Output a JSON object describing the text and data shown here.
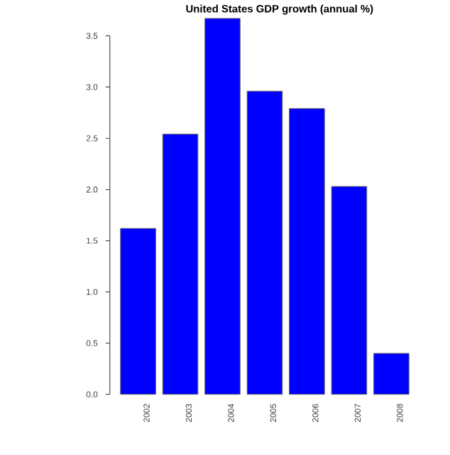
{
  "chart_data": {
    "type": "bar",
    "title": "United States GDP growth (annual %)",
    "categories": [
      "2002",
      "2003",
      "2004",
      "2005",
      "2006",
      "2007",
      "2008"
    ],
    "values": [
      1.62,
      2.54,
      3.67,
      2.96,
      2.79,
      2.03,
      0.4
    ],
    "color": "#0000ff",
    "ylim": [
      0,
      3.7
    ],
    "yticks": [
      {
        "value": 0,
        "label": "0.0"
      },
      0.5,
      {
        "value": 1,
        "label": "1.0"
      },
      1.5,
      {
        "value": 2,
        "label": "2.0"
      },
      2.5,
      {
        "value": 3,
        "label": "3.0"
      },
      3.5
    ]
  }
}
